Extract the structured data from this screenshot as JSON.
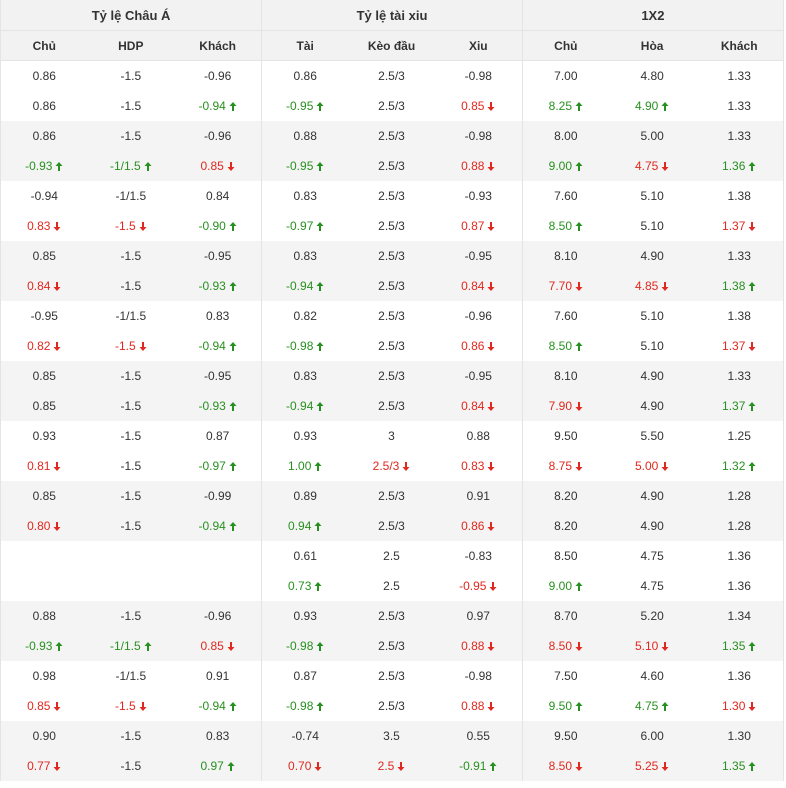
{
  "groups": [
    {
      "label": "Tỷ lệ Châu Á"
    },
    {
      "label": "Tỷ lệ tài xiu"
    },
    {
      "label": "1X2"
    }
  ],
  "columns": [
    "Chủ",
    "HDP",
    "Khách",
    "Tài",
    "Kèo đầu",
    "Xiu",
    "Chủ",
    "Hòa",
    "Khách"
  ],
  "colors": {
    "up": "#27911f",
    "down": "#e0281f",
    "header_bg": "#f2f2f2",
    "alt_row_bg": "#f4f4f4"
  },
  "rows": [
    [
      [
        "0.86",
        ""
      ],
      [
        "-1.5",
        ""
      ],
      [
        "-0.96",
        ""
      ],
      [
        "0.86",
        ""
      ],
      [
        "2.5/3",
        ""
      ],
      [
        "-0.98",
        ""
      ],
      [
        "7.00",
        ""
      ],
      [
        "4.80",
        ""
      ],
      [
        "1.33",
        ""
      ]
    ],
    [
      [
        "0.86",
        ""
      ],
      [
        "-1.5",
        ""
      ],
      [
        "-0.94",
        "up"
      ],
      [
        "-0.95",
        "up"
      ],
      [
        "2.5/3",
        ""
      ],
      [
        "0.85",
        "down"
      ],
      [
        "8.25",
        "up"
      ],
      [
        "4.90",
        "up"
      ],
      [
        "1.33",
        ""
      ]
    ],
    [
      [
        "0.86",
        ""
      ],
      [
        "-1.5",
        ""
      ],
      [
        "-0.96",
        ""
      ],
      [
        "0.88",
        ""
      ],
      [
        "2.5/3",
        ""
      ],
      [
        "-0.98",
        ""
      ],
      [
        "8.00",
        ""
      ],
      [
        "5.00",
        ""
      ],
      [
        "1.33",
        ""
      ]
    ],
    [
      [
        "-0.93",
        "up"
      ],
      [
        "-1/1.5",
        "up"
      ],
      [
        "0.85",
        "down"
      ],
      [
        "-0.95",
        "up"
      ],
      [
        "2.5/3",
        ""
      ],
      [
        "0.88",
        "down"
      ],
      [
        "9.00",
        "up"
      ],
      [
        "4.75",
        "down"
      ],
      [
        "1.36",
        "up"
      ]
    ],
    [
      [
        "-0.94",
        ""
      ],
      [
        "-1/1.5",
        ""
      ],
      [
        "0.84",
        ""
      ],
      [
        "0.83",
        ""
      ],
      [
        "2.5/3",
        ""
      ],
      [
        "-0.93",
        ""
      ],
      [
        "7.60",
        ""
      ],
      [
        "5.10",
        ""
      ],
      [
        "1.38",
        ""
      ]
    ],
    [
      [
        "0.83",
        "down"
      ],
      [
        "-1.5",
        "down"
      ],
      [
        "-0.90",
        "up"
      ],
      [
        "-0.97",
        "up"
      ],
      [
        "2.5/3",
        ""
      ],
      [
        "0.87",
        "down"
      ],
      [
        "8.50",
        "up"
      ],
      [
        "5.10",
        ""
      ],
      [
        "1.37",
        "down"
      ]
    ],
    [
      [
        "0.85",
        ""
      ],
      [
        "-1.5",
        ""
      ],
      [
        "-0.95",
        ""
      ],
      [
        "0.83",
        ""
      ],
      [
        "2.5/3",
        ""
      ],
      [
        "-0.95",
        ""
      ],
      [
        "8.10",
        ""
      ],
      [
        "4.90",
        ""
      ],
      [
        "1.33",
        ""
      ]
    ],
    [
      [
        "0.84",
        "down"
      ],
      [
        "-1.5",
        ""
      ],
      [
        "-0.93",
        "up"
      ],
      [
        "-0.94",
        "up"
      ],
      [
        "2.5/3",
        ""
      ],
      [
        "0.84",
        "down"
      ],
      [
        "7.70",
        "down"
      ],
      [
        "4.85",
        "down"
      ],
      [
        "1.38",
        "up"
      ]
    ],
    [
      [
        "-0.95",
        ""
      ],
      [
        "-1/1.5",
        ""
      ],
      [
        "0.83",
        ""
      ],
      [
        "0.82",
        ""
      ],
      [
        "2.5/3",
        ""
      ],
      [
        "-0.96",
        ""
      ],
      [
        "7.60",
        ""
      ],
      [
        "5.10",
        ""
      ],
      [
        "1.38",
        ""
      ]
    ],
    [
      [
        "0.82",
        "down"
      ],
      [
        "-1.5",
        "down"
      ],
      [
        "-0.94",
        "up"
      ],
      [
        "-0.98",
        "up"
      ],
      [
        "2.5/3",
        ""
      ],
      [
        "0.86",
        "down"
      ],
      [
        "8.50",
        "up"
      ],
      [
        "5.10",
        ""
      ],
      [
        "1.37",
        "down"
      ]
    ],
    [
      [
        "0.85",
        ""
      ],
      [
        "-1.5",
        ""
      ],
      [
        "-0.95",
        ""
      ],
      [
        "0.83",
        ""
      ],
      [
        "2.5/3",
        ""
      ],
      [
        "-0.95",
        ""
      ],
      [
        "8.10",
        ""
      ],
      [
        "4.90",
        ""
      ],
      [
        "1.33",
        ""
      ]
    ],
    [
      [
        "0.85",
        ""
      ],
      [
        "-1.5",
        ""
      ],
      [
        "-0.93",
        "up"
      ],
      [
        "-0.94",
        "up"
      ],
      [
        "2.5/3",
        ""
      ],
      [
        "0.84",
        "down"
      ],
      [
        "7.90",
        "down"
      ],
      [
        "4.90",
        ""
      ],
      [
        "1.37",
        "up"
      ]
    ],
    [
      [
        "0.93",
        ""
      ],
      [
        "-1.5",
        ""
      ],
      [
        "0.87",
        ""
      ],
      [
        "0.93",
        ""
      ],
      [
        "3",
        ""
      ],
      [
        "0.88",
        ""
      ],
      [
        "9.50",
        ""
      ],
      [
        "5.50",
        ""
      ],
      [
        "1.25",
        ""
      ]
    ],
    [
      [
        "0.81",
        "down"
      ],
      [
        "-1.5",
        ""
      ],
      [
        "-0.97",
        "up"
      ],
      [
        "1.00",
        "up"
      ],
      [
        "2.5/3",
        "down"
      ],
      [
        "0.83",
        "down"
      ],
      [
        "8.75",
        "down"
      ],
      [
        "5.00",
        "down"
      ],
      [
        "1.32",
        "up"
      ]
    ],
    [
      [
        "0.85",
        ""
      ],
      [
        "-1.5",
        ""
      ],
      [
        "-0.99",
        ""
      ],
      [
        "0.89",
        ""
      ],
      [
        "2.5/3",
        ""
      ],
      [
        "0.91",
        ""
      ],
      [
        "8.20",
        ""
      ],
      [
        "4.90",
        ""
      ],
      [
        "1.28",
        ""
      ]
    ],
    [
      [
        "0.80",
        "down"
      ],
      [
        "-1.5",
        ""
      ],
      [
        "-0.94",
        "up"
      ],
      [
        "0.94",
        "up"
      ],
      [
        "2.5/3",
        ""
      ],
      [
        "0.86",
        "down"
      ],
      [
        "8.20",
        ""
      ],
      [
        "4.90",
        ""
      ],
      [
        "1.28",
        ""
      ]
    ],
    [
      [
        "",
        ""
      ],
      [
        "",
        ""
      ],
      [
        "",
        ""
      ],
      [
        "0.61",
        ""
      ],
      [
        "2.5",
        ""
      ],
      [
        "-0.83",
        ""
      ],
      [
        "8.50",
        ""
      ],
      [
        "4.75",
        ""
      ],
      [
        "1.36",
        ""
      ]
    ],
    [
      [
        "",
        ""
      ],
      [
        "",
        ""
      ],
      [
        "",
        ""
      ],
      [
        "0.73",
        "up"
      ],
      [
        "2.5",
        ""
      ],
      [
        "-0.95",
        "down"
      ],
      [
        "9.00",
        "up"
      ],
      [
        "4.75",
        ""
      ],
      [
        "1.36",
        ""
      ]
    ],
    [
      [
        "0.88",
        ""
      ],
      [
        "-1.5",
        ""
      ],
      [
        "-0.96",
        ""
      ],
      [
        "0.93",
        ""
      ],
      [
        "2.5/3",
        ""
      ],
      [
        "0.97",
        ""
      ],
      [
        "8.70",
        ""
      ],
      [
        "5.20",
        ""
      ],
      [
        "1.34",
        ""
      ]
    ],
    [
      [
        "-0.93",
        "up"
      ],
      [
        "-1/1.5",
        "up"
      ],
      [
        "0.85",
        "down"
      ],
      [
        "-0.98",
        "up"
      ],
      [
        "2.5/3",
        ""
      ],
      [
        "0.88",
        "down"
      ],
      [
        "8.50",
        "down"
      ],
      [
        "5.10",
        "down"
      ],
      [
        "1.35",
        "up"
      ]
    ],
    [
      [
        "0.98",
        ""
      ],
      [
        "-1/1.5",
        ""
      ],
      [
        "0.91",
        ""
      ],
      [
        "0.87",
        ""
      ],
      [
        "2.5/3",
        ""
      ],
      [
        "-0.98",
        ""
      ],
      [
        "7.50",
        ""
      ],
      [
        "4.60",
        ""
      ],
      [
        "1.36",
        ""
      ]
    ],
    [
      [
        "0.85",
        "down"
      ],
      [
        "-1.5",
        "down"
      ],
      [
        "-0.94",
        "up"
      ],
      [
        "-0.98",
        "up"
      ],
      [
        "2.5/3",
        ""
      ],
      [
        "0.88",
        "down"
      ],
      [
        "9.50",
        "up"
      ],
      [
        "4.75",
        "up"
      ],
      [
        "1.30",
        "down"
      ]
    ],
    [
      [
        "0.90",
        ""
      ],
      [
        "-1.5",
        ""
      ],
      [
        "0.83",
        ""
      ],
      [
        "-0.74",
        ""
      ],
      [
        "3.5",
        ""
      ],
      [
        "0.55",
        ""
      ],
      [
        "9.50",
        ""
      ],
      [
        "6.00",
        ""
      ],
      [
        "1.30",
        ""
      ]
    ],
    [
      [
        "0.77",
        "down"
      ],
      [
        "-1.5",
        ""
      ],
      [
        "0.97",
        "up"
      ],
      [
        "0.70",
        "down"
      ],
      [
        "2.5",
        "down"
      ],
      [
        "-0.91",
        "up"
      ],
      [
        "8.50",
        "down"
      ],
      [
        "5.25",
        "down"
      ],
      [
        "1.35",
        "up"
      ]
    ]
  ]
}
